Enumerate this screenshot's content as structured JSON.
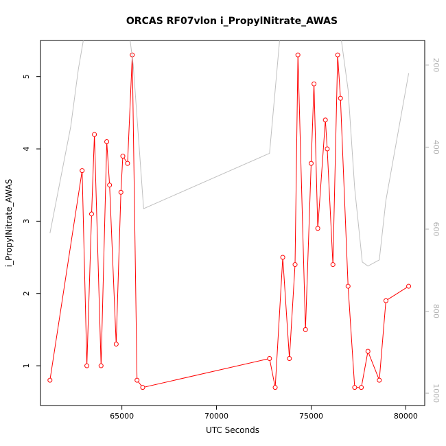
{
  "chart_data": {
    "type": "line",
    "title": "ORCAS RF07vlon i_PropylNitrate_AWAS",
    "xlabel": "UTC Seconds",
    "ylabel": "i_PropylNitrate_AWAS",
    "xlim": [
      60700,
      81000
    ],
    "ylim": [
      0.45,
      5.5
    ],
    "x_ticks": [
      65000,
      70000,
      75000,
      80000
    ],
    "x_tick_labels": [
      "65000",
      "70000",
      "75000",
      "80000"
    ],
    "y_ticks": [
      1,
      2,
      3,
      4,
      5
    ],
    "y_tick_labels": [
      "1",
      "2",
      "3",
      "4",
      "5"
    ],
    "y2lim": [
      1030,
      140
    ],
    "y2_ticks": [
      200,
      400,
      600,
      800,
      1000
    ],
    "y2_tick_labels": [
      "200",
      "400",
      "600",
      "800",
      "1000"
    ],
    "series": [
      {
        "color": "#ff0000",
        "marker": "circle-open",
        "points": [
          [
            61200,
            0.8
          ],
          [
            62900,
            3.7
          ],
          [
            63150,
            1.0
          ],
          [
            63400,
            3.1
          ],
          [
            63550,
            4.2
          ],
          [
            63900,
            1.0
          ],
          [
            64200,
            4.1
          ],
          [
            64350,
            3.5
          ],
          [
            64700,
            1.3
          ],
          [
            64950,
            3.4
          ],
          [
            65050,
            3.9
          ],
          [
            65300,
            3.8
          ],
          [
            65550,
            5.3
          ],
          [
            65800,
            0.8
          ],
          [
            66100,
            0.7
          ],
          [
            72800,
            1.1
          ],
          [
            73100,
            0.7
          ],
          [
            73500,
            2.5
          ],
          [
            73850,
            1.1
          ],
          [
            74150,
            2.4
          ],
          [
            74300,
            5.3
          ],
          [
            74700,
            1.5
          ],
          [
            75000,
            3.8
          ],
          [
            75150,
            4.9
          ],
          [
            75350,
            2.9
          ],
          [
            75750,
            4.4
          ],
          [
            75850,
            4.0
          ],
          [
            76150,
            2.4
          ],
          [
            76400,
            5.3
          ],
          [
            76550,
            4.7
          ],
          [
            76950,
            2.1
          ],
          [
            77300,
            0.7
          ],
          [
            77650,
            0.7
          ],
          [
            78000,
            1.2
          ],
          [
            78600,
            0.8
          ],
          [
            78950,
            1.9
          ],
          [
            80150,
            2.1
          ]
        ]
      },
      {
        "color": "#c0c0c0",
        "axis": "right",
        "points": [
          [
            61200,
            610
          ],
          [
            62300,
            350
          ],
          [
            62700,
            210
          ],
          [
            63150,
            90
          ],
          [
            64200,
            60
          ],
          [
            65300,
            90
          ],
          [
            65600,
            200
          ],
          [
            66150,
            550
          ],
          [
            72800,
            415
          ],
          [
            73100,
            260
          ],
          [
            73350,
            130
          ],
          [
            74400,
            90
          ],
          [
            75350,
            90
          ],
          [
            76450,
            90
          ],
          [
            76950,
            260
          ],
          [
            77300,
            500
          ],
          [
            77700,
            680
          ],
          [
            78000,
            690
          ],
          [
            78600,
            675
          ],
          [
            78950,
            530
          ],
          [
            80150,
            220
          ]
        ]
      }
    ]
  }
}
